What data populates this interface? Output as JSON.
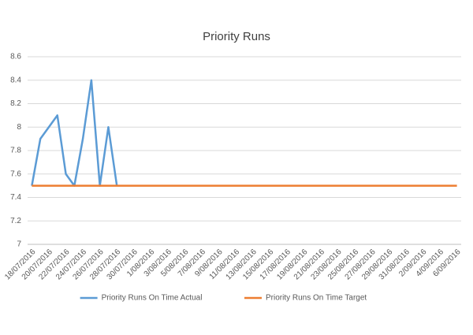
{
  "chart_data": {
    "type": "line",
    "title": "Priority Runs",
    "categories": [
      "18/07/2016",
      null,
      "20/07/2016",
      null,
      "22/07/2016",
      null,
      "24/07/2016",
      null,
      "26/07/2016",
      null,
      "28/07/2016",
      null,
      "30/07/2016",
      null,
      "1/08/2016",
      null,
      "3/08/2016",
      null,
      "5/08/2016",
      null,
      "7/08/2016",
      null,
      "9/08/2016",
      null,
      "11/08/2016",
      null,
      "13/08/2016",
      null,
      "15/08/2016",
      null,
      "17/08/2016",
      null,
      "19/08/2016",
      null,
      "21/08/2016",
      null,
      "23/08/2016",
      null,
      "25/08/2016",
      null,
      "27/08/2016",
      null,
      "29/08/2016",
      null,
      "31/08/2016",
      null,
      "2/09/2016",
      null,
      "4/09/2016",
      null,
      "6/09/2016"
    ],
    "series": [
      {
        "name": "Priority Runs On Time Actual",
        "color": "#5b9bd5",
        "values": [
          7.5,
          7.9,
          8.0,
          8.1,
          7.6,
          7.5,
          7.9,
          8.4,
          7.5,
          8.0,
          7.5,
          null,
          null,
          null,
          null,
          null,
          null,
          null,
          null,
          null,
          null,
          null,
          null,
          null,
          null,
          null,
          null,
          null,
          null,
          null,
          null,
          null,
          null,
          null,
          null,
          null,
          null,
          null,
          null,
          null,
          null,
          null,
          null,
          null,
          null,
          null,
          null,
          null,
          null,
          null,
          null
        ]
      },
      {
        "name": "Priority Runs On Time Target",
        "color": "#ed7d31",
        "values": [
          7.5,
          7.5,
          7.5,
          7.5,
          7.5,
          7.5,
          7.5,
          7.5,
          7.5,
          7.5,
          7.5,
          7.5,
          7.5,
          7.5,
          7.5,
          7.5,
          7.5,
          7.5,
          7.5,
          7.5,
          7.5,
          7.5,
          7.5,
          7.5,
          7.5,
          7.5,
          7.5,
          7.5,
          7.5,
          7.5,
          7.5,
          7.5,
          7.5,
          7.5,
          7.5,
          7.5,
          7.5,
          7.5,
          7.5,
          7.5,
          7.5,
          7.5,
          7.5,
          7.5,
          7.5,
          7.5,
          7.5,
          7.5,
          7.5,
          7.5,
          7.5
        ]
      }
    ],
    "ylim": [
      7,
      8.6
    ],
    "yticks": [
      7,
      7.2,
      7.4,
      7.6,
      7.8,
      8,
      8.2,
      8.4,
      8.6
    ],
    "grid": true,
    "legend": "bottom"
  }
}
